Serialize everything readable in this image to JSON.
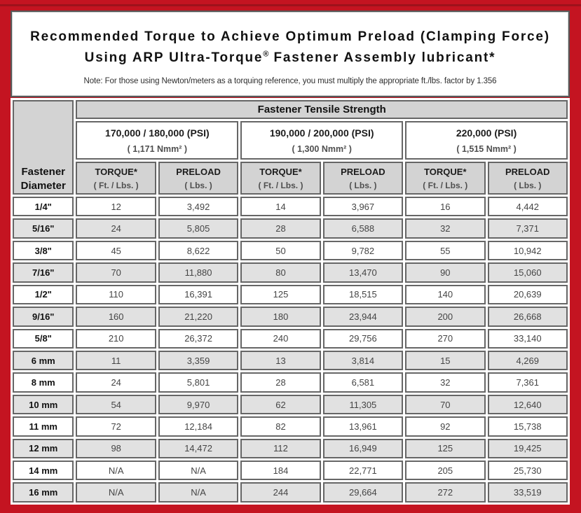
{
  "frame": {
    "border_color": "#c41421",
    "panel_border_color": "#575757"
  },
  "header": {
    "title_line1": "Recommended Torque to Achieve Optimum Preload (Clamping Force)",
    "title_line2_prefix": "Using ARP Ultra-Torque",
    "title_line2_reg_mark": "®",
    "title_line2_suffix": " Fastener Assembly lubricant*",
    "note": "Note: For those using Newton/meters as a torquing reference, you must multiply the appropriate ft./lbs. factor by 1.356"
  },
  "table": {
    "corner_header_line1": "Fastener",
    "corner_header_line2": "Diameter",
    "group_header": "Fastener Tensile Strength",
    "strength_columns": [
      {
        "psi": "170,000 / 180,000 (PSI)",
        "nmm": "( 1,171 Nmm² )"
      },
      {
        "psi": "190,000 / 200,000 (PSI)",
        "nmm": "( 1,300 Nmm² )"
      },
      {
        "psi": "220,000 (PSI)",
        "nmm": "( 1,515 Nmm² )"
      }
    ],
    "sub_headers": {
      "torque_label": "TORQUE*",
      "torque_unit": "( Ft. / Lbs. )",
      "preload_label": "PRELOAD",
      "preload_unit": "( Lbs. )"
    },
    "rows": [
      {
        "diameter": "1/4\"",
        "values": [
          "12",
          "3,492",
          "14",
          "3,967",
          "16",
          "4,442"
        ]
      },
      {
        "diameter": "5/16\"",
        "values": [
          "24",
          "5,805",
          "28",
          "6,588",
          "32",
          "7,371"
        ]
      },
      {
        "diameter": "3/8\"",
        "values": [
          "45",
          "8,622",
          "50",
          "9,782",
          "55",
          "10,942"
        ]
      },
      {
        "diameter": "7/16\"",
        "values": [
          "70",
          "11,880",
          "80",
          "13,470",
          "90",
          "15,060"
        ]
      },
      {
        "diameter": "1/2\"",
        "values": [
          "110",
          "16,391",
          "125",
          "18,515",
          "140",
          "20,639"
        ]
      },
      {
        "diameter": "9/16\"",
        "values": [
          "160",
          "21,220",
          "180",
          "23,944",
          "200",
          "26,668"
        ]
      },
      {
        "diameter": "5/8\"",
        "values": [
          "210",
          "26,372",
          "240",
          "29,756",
          "270",
          "33,140"
        ]
      },
      {
        "diameter": "6 mm",
        "values": [
          "11",
          "3,359",
          "13",
          "3,814",
          "15",
          "4,269"
        ]
      },
      {
        "diameter": "8 mm",
        "values": [
          "24",
          "5,801",
          "28",
          "6,581",
          "32",
          "7,361"
        ]
      },
      {
        "diameter": "10 mm",
        "values": [
          "54",
          "9,970",
          "62",
          "11,305",
          "70",
          "12,640"
        ]
      },
      {
        "diameter": "11 mm",
        "values": [
          "72",
          "12,184",
          "82",
          "13,961",
          "92",
          "15,738"
        ]
      },
      {
        "diameter": "12 mm",
        "values": [
          "98",
          "14,472",
          "112",
          "16,949",
          "125",
          "19,425"
        ]
      },
      {
        "diameter": "14 mm",
        "values": [
          "N/A",
          "N/A",
          "184",
          "22,771",
          "205",
          "25,730"
        ]
      },
      {
        "diameter": "16 mm",
        "values": [
          "N/A",
          "N/A",
          "244",
          "29,664",
          "272",
          "33,519"
        ]
      }
    ]
  }
}
